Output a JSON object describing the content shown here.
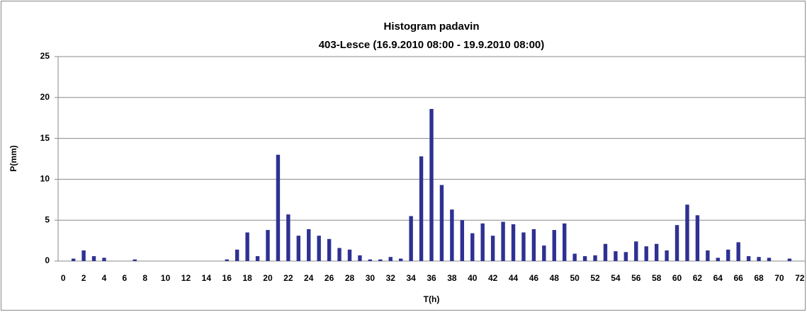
{
  "chart_data": {
    "type": "bar",
    "title": "Histogram padavin",
    "subtitle": "403-Lesce (16.9.2010 08:00 - 19.9.2010 08:00)",
    "x_label": "T(h)",
    "y_label": "P(mm)",
    "categories": [
      "0",
      null,
      "2",
      null,
      "4",
      null,
      "6",
      null,
      "8",
      null,
      "10",
      null,
      "12",
      null,
      "14",
      null,
      "16",
      null,
      "18",
      null,
      "20",
      null,
      "22",
      null,
      "24",
      null,
      "26",
      null,
      "28",
      null,
      "30",
      null,
      "32",
      null,
      "34",
      null,
      "36",
      null,
      "38",
      null,
      "40",
      null,
      "42",
      null,
      "44",
      null,
      "46",
      null,
      "48",
      null,
      "50",
      null,
      "52",
      null,
      "54",
      null,
      "56",
      null,
      "58",
      null,
      "60",
      null,
      "62",
      null,
      "64",
      null,
      "66",
      null,
      "68",
      null,
      "70",
      null,
      "72"
    ],
    "values": [
      0,
      0.3,
      1.3,
      0.6,
      0.4,
      0,
      0,
      0.2,
      0,
      0,
      0,
      0,
      0,
      0,
      0,
      0,
      0.2,
      1.4,
      3.5,
      0.6,
      3.8,
      13.0,
      5.7,
      3.1,
      3.9,
      3.1,
      2.7,
      1.6,
      1.4,
      0.7,
      0.2,
      0.2,
      0.5,
      0.3,
      5.5,
      12.8,
      18.6,
      9.3,
      6.3,
      5.0,
      3.4,
      4.6,
      3.1,
      4.8,
      4.5,
      3.5,
      3.9,
      1.9,
      3.8,
      4.6,
      0.9,
      0.6,
      0.7,
      2.1,
      1.2,
      1.1,
      2.4,
      1.8,
      2.1,
      1.3,
      4.4,
      6.9,
      5.6,
      1.3,
      0.4,
      1.4,
      2.3,
      0.6,
      0.5,
      0.4,
      0,
      0.3,
      0
    ],
    "color": "#2e3192",
    "ylim": [
      0,
      25
    ],
    "yticks": [
      0,
      5,
      10,
      15,
      20,
      25
    ],
    "grid": true
  }
}
